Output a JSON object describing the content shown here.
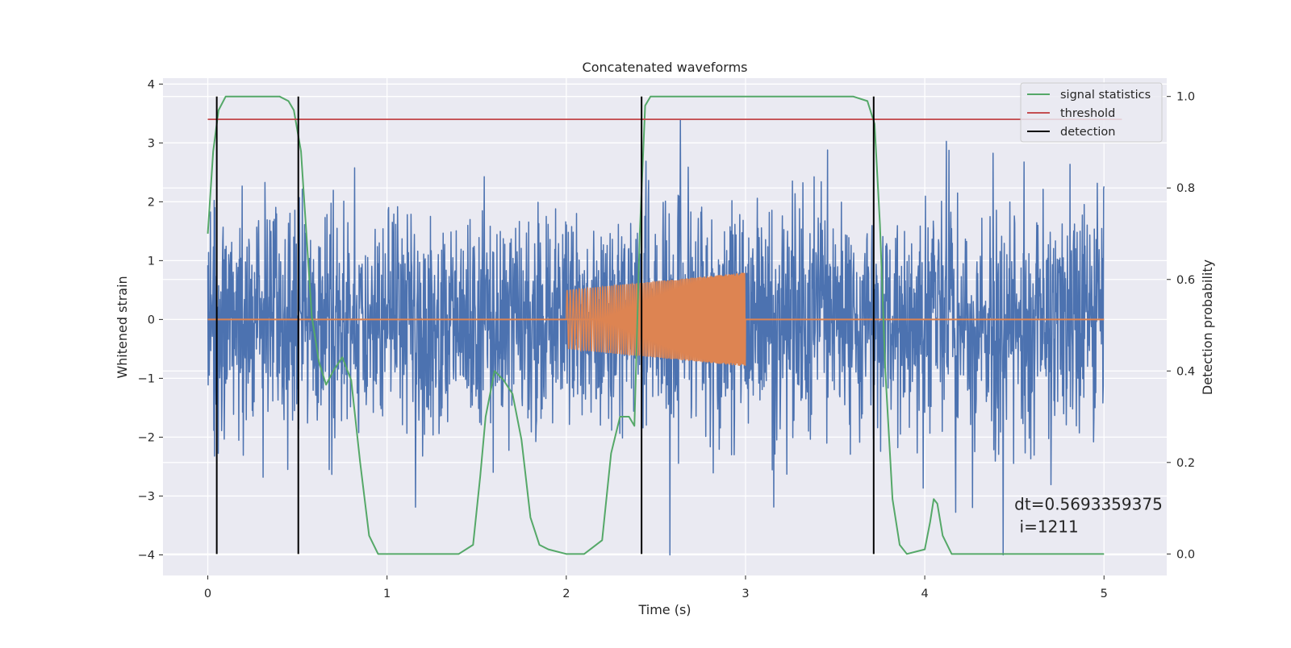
{
  "chart_data": {
    "type": "line",
    "title": "Concatenated waveforms",
    "xlabel": "Time (s)",
    "ylabel": "Whitened strain",
    "y2label": "Detection probability",
    "xlim": [
      -0.25,
      5.35
    ],
    "ylim": [
      -4.35,
      4.1
    ],
    "y2lim": [
      -0.047,
      1.04
    ],
    "xticks": [
      0,
      1,
      2,
      3,
      4,
      5
    ],
    "xtick_labels": [
      "0",
      "1",
      "2",
      "3",
      "4",
      "5"
    ],
    "yticks": [
      4,
      3,
      2,
      1,
      0,
      -1,
      -2,
      -3,
      -4
    ],
    "ytick_labels": [
      "4",
      "3",
      "2",
      "1",
      "0",
      "−1",
      "−2",
      "−3",
      "−4"
    ],
    "y2ticks": [
      1.0,
      0.8,
      0.6,
      0.4,
      0.2,
      0.0
    ],
    "y2tick_labels": [
      "1.0",
      "0.8",
      "0.6",
      "0.4",
      "0.2",
      "0.0"
    ],
    "grid": true,
    "legend_position": "top-right",
    "annotation": {
      "line1": "dt=0.5693359375",
      "line2": " i=1211",
      "x": 4.5,
      "y": -3.1
    },
    "series": [
      {
        "name": "signal statistics",
        "axis": "right",
        "color": "#55a868",
        "x": [
          0.0,
          0.03,
          0.06,
          0.1,
          0.15,
          0.2,
          0.3,
          0.4,
          0.45,
          0.48,
          0.52,
          0.55,
          0.58,
          0.62,
          0.66,
          0.7,
          0.75,
          0.8,
          0.85,
          0.9,
          0.95,
          1.0,
          1.2,
          1.4,
          1.48,
          1.52,
          1.55,
          1.6,
          1.65,
          1.7,
          1.75,
          1.8,
          1.85,
          1.9,
          2.0,
          2.1,
          2.2,
          2.25,
          2.3,
          2.35,
          2.38,
          2.41,
          2.44,
          2.47,
          2.52,
          2.6,
          2.8,
          3.0,
          3.3,
          3.6,
          3.68,
          3.72,
          3.75,
          3.78,
          3.82,
          3.86,
          3.9,
          4.0,
          4.03,
          4.05,
          4.07,
          4.1,
          4.15,
          4.3,
          4.6,
          5.0
        ],
        "values": [
          0.7,
          0.88,
          0.97,
          1.0,
          1.0,
          1.0,
          1.0,
          1.0,
          0.99,
          0.97,
          0.88,
          0.7,
          0.52,
          0.42,
          0.37,
          0.4,
          0.43,
          0.38,
          0.2,
          0.04,
          0.0,
          0.0,
          0.0,
          0.0,
          0.02,
          0.17,
          0.3,
          0.4,
          0.38,
          0.35,
          0.25,
          0.08,
          0.02,
          0.01,
          0.0,
          0.0,
          0.03,
          0.22,
          0.3,
          0.3,
          0.28,
          0.7,
          0.98,
          1.0,
          1.0,
          1.0,
          1.0,
          1.0,
          1.0,
          1.0,
          0.99,
          0.94,
          0.72,
          0.4,
          0.12,
          0.02,
          0.0,
          0.01,
          0.07,
          0.12,
          0.11,
          0.04,
          0.0,
          0.0,
          0.0,
          0.0
        ]
      },
      {
        "name": "threshold",
        "axis": "right",
        "color": "#c44e52",
        "x": [
          0.0,
          5.1
        ],
        "values": [
          0.95,
          0.95
        ]
      },
      {
        "name": "detection",
        "axis": "right",
        "color": "#000000",
        "type": "vlines",
        "x": [
          0.05,
          0.505,
          2.42,
          3.715
        ],
        "ymin": 0.0,
        "ymax": 1.0
      }
    ],
    "unlabeled_series": [
      {
        "kind": "noise",
        "color": "#4c72b0",
        "axis": "left",
        "x_range": [
          0.0,
          5.0
        ],
        "typical_peak_amplitude": 2.0,
        "max_value": 3.4,
        "min_value": -4.0
      },
      {
        "kind": "chirp",
        "color": "#dd8452",
        "axis": "left",
        "x_range": [
          2.0,
          3.0
        ],
        "amplitude_start": 0.5,
        "amplitude_end": 0.8,
        "baseline_x_range": [
          0.0,
          5.0
        ],
        "baseline_value": 0.0
      }
    ]
  }
}
